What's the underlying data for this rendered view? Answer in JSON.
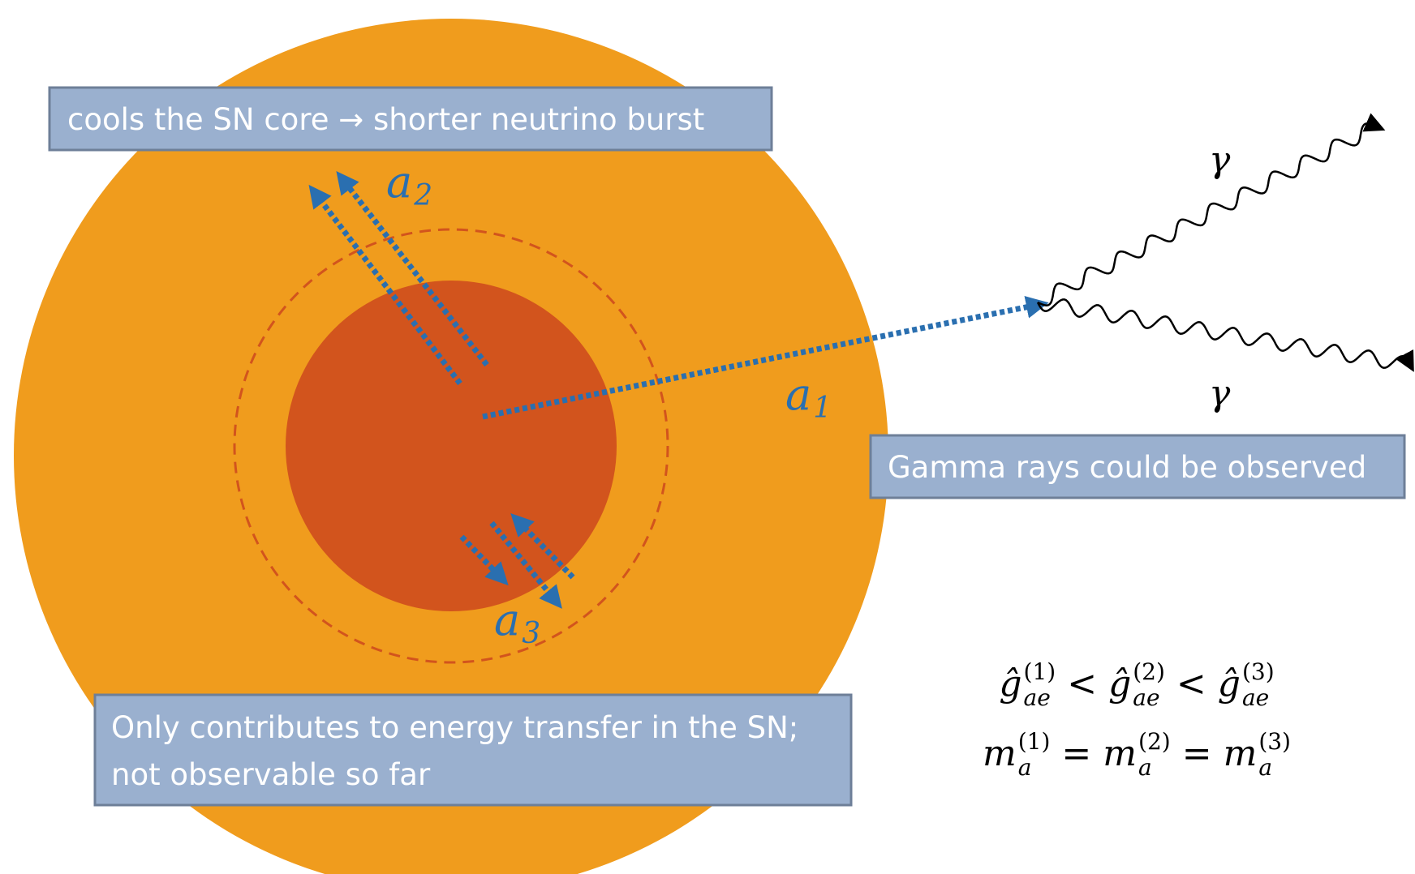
{
  "top_box": {
    "text": "cools the SN core → shorter neutrino burst"
  },
  "axion_labels": [
    {
      "base": "a",
      "sub": "1"
    },
    {
      "base": "a",
      "sub": "2"
    },
    {
      "base": "a",
      "sub": "3"
    }
  ],
  "photon_labels": [
    "γ",
    "γ"
  ],
  "gamma_box": {
    "text": "Gamma rays could be observed"
  },
  "bottom_box": {
    "lines": [
      "Only contributes to energy transfer in the SN;",
      "not observable so far"
    ]
  },
  "equations": [
    {
      "terms": [
        {
          "base": "ĝ",
          "sub": "ae",
          "sup": "(1)"
        },
        {
          "base": "ĝ",
          "sub": "ae",
          "sup": "(2)"
        },
        {
          "base": "ĝ",
          "sub": "ae",
          "sup": "(3)"
        }
      ],
      "relations": [
        "<",
        "<"
      ]
    },
    {
      "terms": [
        {
          "base": "m",
          "sub": "a",
          "sup": "(1)"
        },
        {
          "base": "m",
          "sub": "a",
          "sup": "(2)"
        },
        {
          "base": "m",
          "sub": "a",
          "sup": "(3)"
        }
      ],
      "relations": [
        "=",
        "="
      ]
    }
  ]
}
